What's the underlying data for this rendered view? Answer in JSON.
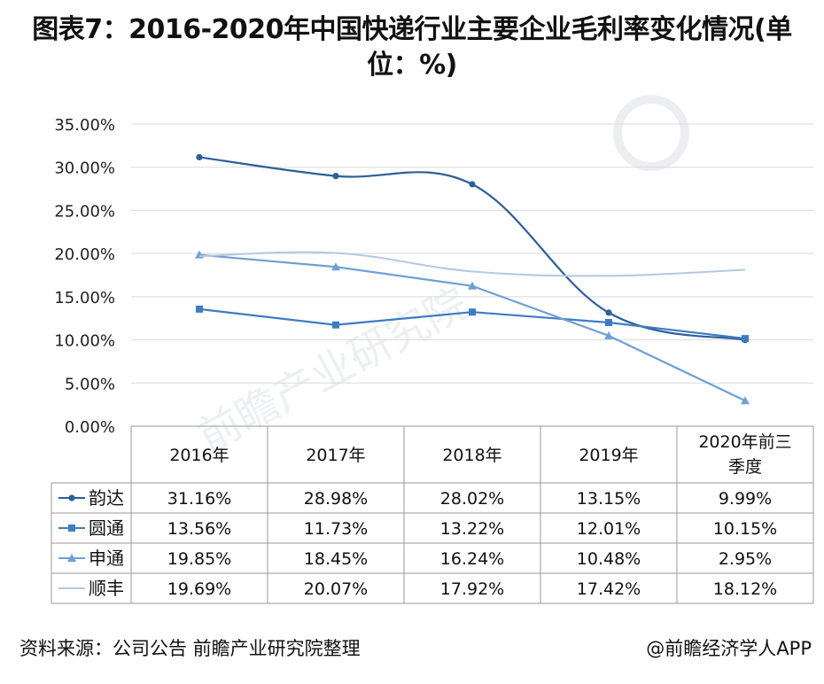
{
  "title": "图表7：2016-2020年中国快递行业主要企业毛利率变化情况(单位：%)",
  "source": "资料来源：公司公告 前瞻产业研究院整理",
  "credit": "@前瞻经济学人APP",
  "watermark": "前瞻产业研究院",
  "colors": {
    "yunda": "#2d5f9a",
    "yuantong": "#3f7bc4",
    "shentong": "#6f9fd6",
    "shunfeng": "#b6c7e6",
    "grid": "#d9d9d9",
    "table_border": "#9a9a9a"
  },
  "chart_data": {
    "type": "line",
    "categories": [
      "2016年",
      "2017年",
      "2018年",
      "2019年",
      "2020年前三季度"
    ],
    "y_ticks": [
      "0.00%",
      "5.00%",
      "10.00%",
      "15.00%",
      "20.00%",
      "25.00%",
      "30.00%",
      "35.00%"
    ],
    "ylim": [
      0,
      35
    ],
    "grid": true,
    "legend": "data-table-left",
    "series": [
      {
        "name": "韵达",
        "marker": "circle",
        "values": [
          31.16,
          28.98,
          28.02,
          13.15,
          9.99
        ],
        "labels": [
          "31.16%",
          "28.98%",
          "28.02%",
          "13.15%",
          "9.99%"
        ]
      },
      {
        "name": "圆通",
        "marker": "square",
        "values": [
          13.56,
          11.73,
          13.22,
          12.01,
          10.15
        ],
        "labels": [
          "13.56%",
          "11.73%",
          "13.22%",
          "12.01%",
          "10.15%"
        ]
      },
      {
        "name": "申通",
        "marker": "triangle",
        "values": [
          19.85,
          18.45,
          16.24,
          10.48,
          2.95
        ],
        "labels": [
          "19.85%",
          "18.45%",
          "16.24%",
          "10.48%",
          "2.95%"
        ]
      },
      {
        "name": "顺丰",
        "marker": "none",
        "values": [
          19.69,
          20.07,
          17.92,
          17.42,
          18.12
        ],
        "labels": [
          "19.69%",
          "20.07%",
          "17.92%",
          "17.42%",
          "18.12%"
        ]
      }
    ]
  }
}
